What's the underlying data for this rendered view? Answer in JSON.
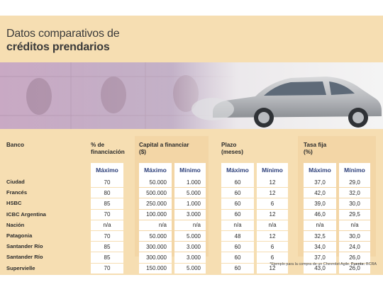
{
  "title": {
    "line1": "Datos comparativos de",
    "line2": "créditos prendarios"
  },
  "photo": {
    "icon": "banknotes-and-car-photo"
  },
  "columns": {
    "banco": "Banco",
    "financiacion": "% de financiación",
    "capital_line1": "Capital a financiar",
    "capital_line2": "($)",
    "plazo_line1": "Plazo",
    "plazo_line2": "(meses)",
    "tasa_line1": "Tasa fija",
    "tasa_line2": "(%)"
  },
  "sub": {
    "max": "Máximo",
    "min": "Mínimo"
  },
  "rows": [
    {
      "bank": "Ciudad",
      "fin": "70",
      "cap_max": "50.000",
      "cap_min": "1.000",
      "plazo_max": "60",
      "plazo_min": "12",
      "tasa_max": "37,0",
      "tasa_min": "29,0"
    },
    {
      "bank": "Francés",
      "fin": "80",
      "cap_max": "500.000",
      "cap_min": "5.000",
      "plazo_max": "60",
      "plazo_min": "12",
      "tasa_max": "42,0",
      "tasa_min": "32,0"
    },
    {
      "bank": "HSBC",
      "fin": "85",
      "cap_max": "250.000",
      "cap_min": "1.000",
      "plazo_max": "60",
      "plazo_min": "6",
      "tasa_max": "39,0",
      "tasa_min": "30,0"
    },
    {
      "bank": "ICBC Argentina",
      "fin": "70",
      "cap_max": "100.000",
      "cap_min": "3.000",
      "plazo_max": "60",
      "plazo_min": "12",
      "tasa_max": "46,0",
      "tasa_min": "29,5"
    },
    {
      "bank": "Nación",
      "fin": "n/a",
      "cap_max": "n/a",
      "cap_min": "n/a",
      "plazo_max": "n/a",
      "plazo_min": "n/a",
      "tasa_max": "n/a",
      "tasa_min": "n/a"
    },
    {
      "bank": "Patagonia",
      "fin": "70",
      "cap_max": "50.000",
      "cap_min": "5.000",
      "plazo_max": "48",
      "plazo_min": "12",
      "tasa_max": "32,5",
      "tasa_min": "30,0"
    },
    {
      "bank": "Santander Río",
      "fin": "85",
      "cap_max": "300.000",
      "cap_min": "3.000",
      "plazo_max": "60",
      "plazo_min": "6",
      "tasa_max": "34,0",
      "tasa_min": "24,0"
    },
    {
      "bank": "Santander Río",
      "fin": "85",
      "cap_max": "300.000",
      "cap_min": "3.000",
      "plazo_max": "60",
      "plazo_min": "6",
      "tasa_max": "37,0",
      "tasa_min": "26,0"
    },
    {
      "bank": "Supervielle",
      "fin": "70",
      "cap_max": "150.000",
      "cap_min": "5.000",
      "plazo_max": "60",
      "plazo_min": "12",
      "tasa_max": "43,0",
      "tasa_min": "26,0"
    }
  ],
  "note": {
    "text": "*Ejemplo para la compra de un Chevrolet Agile.",
    "source_label": "Fuente:",
    "source": "BCRA"
  }
}
